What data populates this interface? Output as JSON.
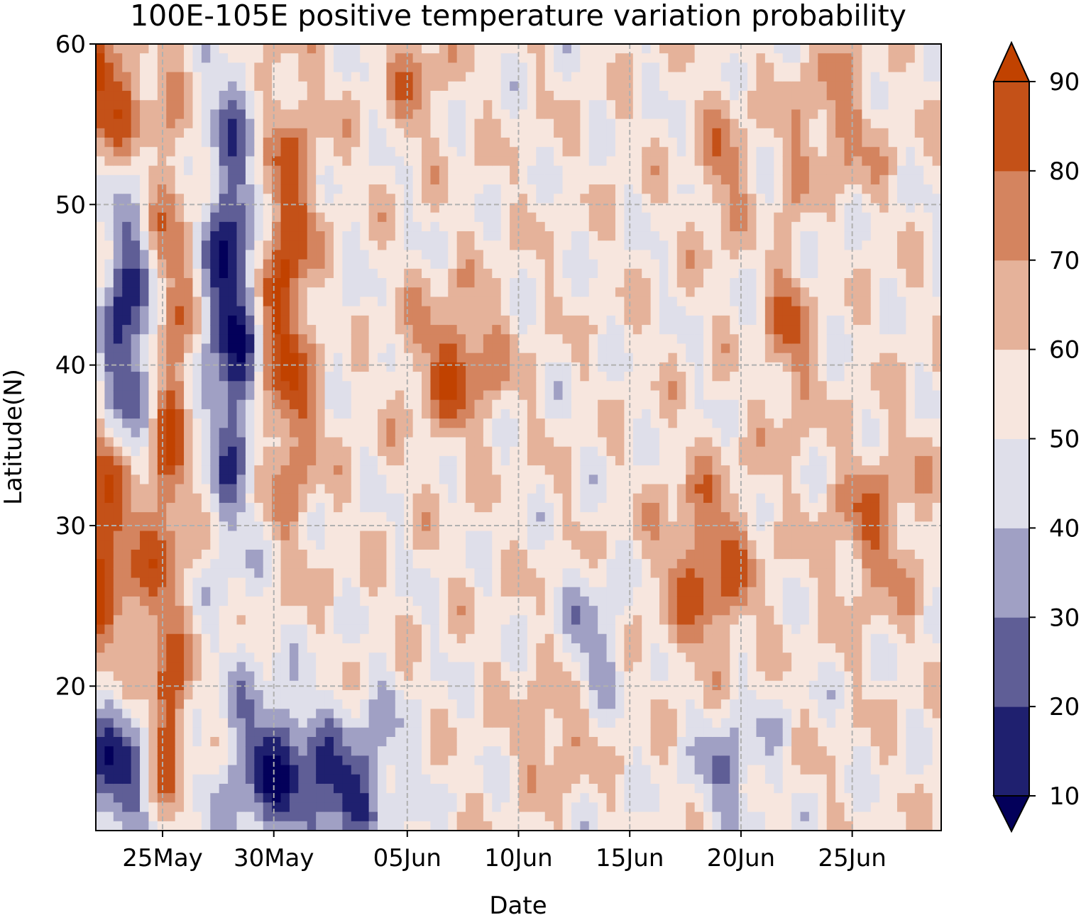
{
  "chart_data": {
    "type": "heatmap",
    "subtype": "filled-contour",
    "title": "100E-105E positive temperature variation probability",
    "xlabel": "Date",
    "ylabel": "Latitude(N)",
    "x_range_days_from_25May": [
      -3,
      35
    ],
    "xticks": [
      {
        "label": "25May",
        "day": 0
      },
      {
        "label": "30May",
        "day": 5
      },
      {
        "label": "05Jun",
        "day": 11
      },
      {
        "label": "10Jun",
        "day": 16
      },
      {
        "label": "15Jun",
        "day": 21
      },
      {
        "label": "20Jun",
        "day": 26
      },
      {
        "label": "25Jun",
        "day": 31
      }
    ],
    "ylim": [
      11,
      60
    ],
    "yticks": [
      {
        "label": "20",
        "value": 20
      },
      {
        "label": "30",
        "value": 30
      },
      {
        "label": "40",
        "value": 40
      },
      {
        "label": "50",
        "value": 50
      },
      {
        "label": "60",
        "value": 60
      }
    ],
    "grid": true,
    "colorbar": {
      "levels": [
        10,
        20,
        30,
        40,
        50,
        60,
        70,
        80,
        90
      ],
      "labels": [
        "10",
        "20",
        "30",
        "40",
        "50",
        "60",
        "70",
        "80",
        "90"
      ],
      "colors": [
        "#03005a",
        "#1f206f",
        "#5f5e96",
        "#a0a0c4",
        "#dfdfea",
        "#f7e6de",
        "#e5b29a",
        "#d4845f",
        "#c45118",
        "#c14200"
      ],
      "extend": "both"
    },
    "features": [
      {
        "description": "high-probability band",
        "day": -3,
        "lat_from": 22,
        "lat_to": 38,
        "value": 90
      },
      {
        "description": "high-probability band",
        "day": -3,
        "lat_from": 53,
        "lat_to": 60,
        "value": 90
      },
      {
        "description": "low-probability band",
        "day": -2,
        "lat_from": 33,
        "lat_to": 50,
        "value": 10
      },
      {
        "description": "low-probability band",
        "day": 3,
        "lat_from": 30,
        "lat_to": 58,
        "value": 15
      },
      {
        "description": "high-probability band",
        "day": 5,
        "lat_from": 32,
        "lat_to": 56,
        "value": 90
      },
      {
        "description": "low-probability patch",
        "day": 5,
        "lat_from": 11,
        "lat_to": 20,
        "value": 20
      },
      {
        "description": "high-probability patch",
        "day": 13,
        "lat_from": 36,
        "lat_to": 44,
        "value": 85
      },
      {
        "description": "high-probability patch",
        "day": 24,
        "lat_from": 22,
        "lat_to": 34,
        "value": 85
      },
      {
        "description": "high-probability patch",
        "day": 28,
        "lat_from": 40,
        "lat_to": 52,
        "value": 85
      }
    ]
  }
}
